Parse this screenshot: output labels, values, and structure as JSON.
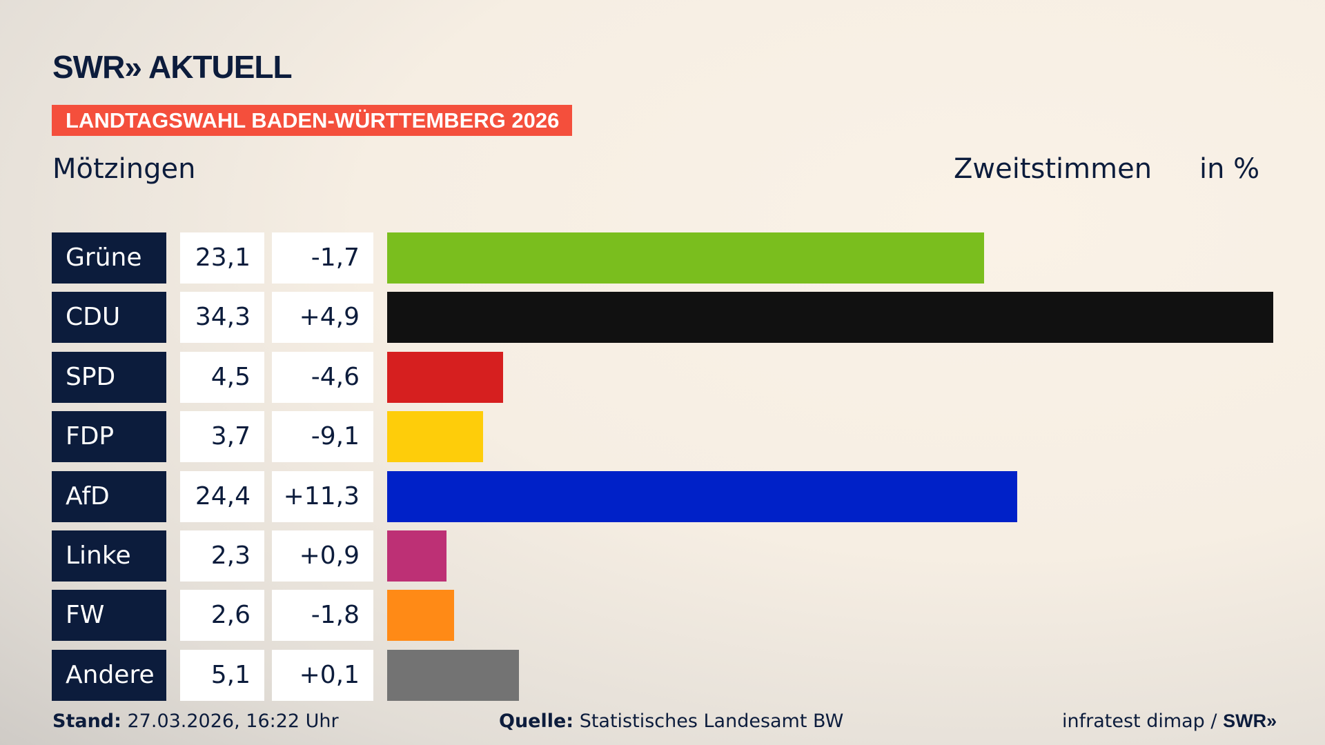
{
  "header": {
    "logo": "SWR» AKTUELL",
    "banner": "LANDTAGSWAHL BADEN-WÜRTTEMBERG 2026",
    "place": "Mötzingen",
    "vote_type": "Zweitstimmen",
    "unit": "in %"
  },
  "chart_data": {
    "type": "bar",
    "orientation": "horizontal",
    "categories": [
      "Grüne",
      "CDU",
      "SPD",
      "FDP",
      "AfD",
      "Linke",
      "FW",
      "Andere"
    ],
    "values": [
      23.1,
      34.3,
      4.5,
      3.7,
      24.4,
      2.3,
      2.6,
      5.1
    ],
    "value_labels": [
      "23,1",
      "34,3",
      "4,5",
      "3,7",
      "24,4",
      "2,3",
      "2,6",
      "5,1"
    ],
    "diff_labels": [
      "-1,7",
      "+4,9",
      "-4,6",
      "-9,1",
      "+11,3",
      "+0,9",
      "-1,8",
      "+0,1"
    ],
    "colors": [
      "#7abe1e",
      "#111111",
      "#d61f1f",
      "#fecd0a",
      "#0021c8",
      "#bd3075",
      "#ff8a16",
      "#737373"
    ],
    "unit": "%"
  },
  "footer": {
    "stand_label": "Stand:",
    "stand": " 27.03.2026, 16:22 Uhr",
    "source_label": "Quelle:",
    "source": " Statistisches Landesamt BW",
    "credit": "infratest dimap / ",
    "credit_logo": "SWR»"
  }
}
